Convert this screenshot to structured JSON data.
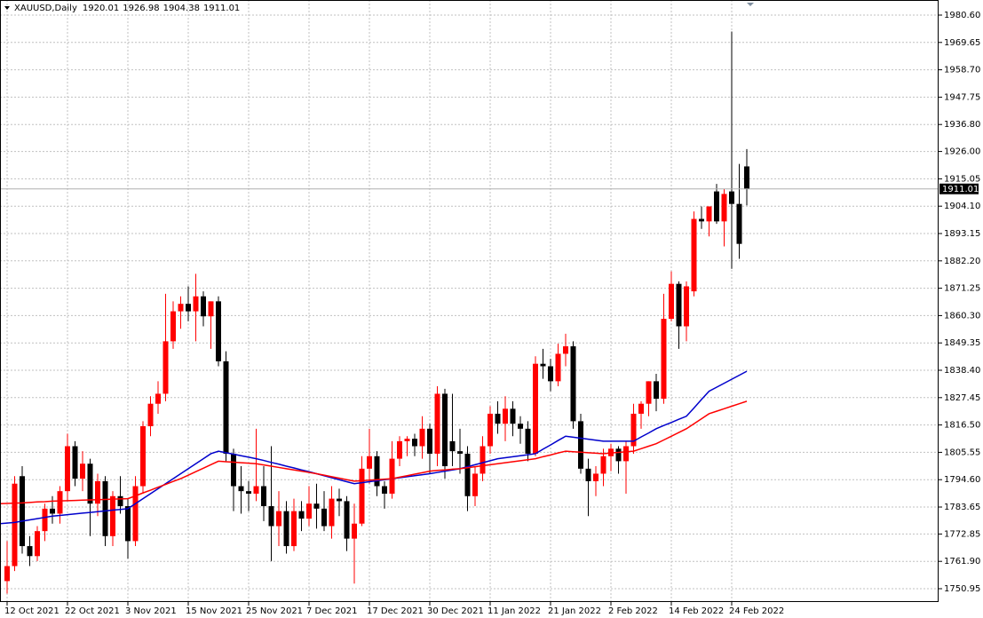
{
  "chart_data": {
    "type": "candlestick",
    "title": "XAUUSD,Daily",
    "bull_color": "#ff0000",
    "bear_color": "#000000",
    "grid": true,
    "categories": [
      "12 Oct 2021",
      null,
      null,
      null,
      null,
      null,
      null,
      null,
      "22 Oct 2021",
      null,
      null,
      null,
      null,
      null,
      null,
      null,
      "3 Nov 2021",
      null,
      null,
      null,
      null,
      null,
      null,
      null,
      "15 Nov 2021",
      null,
      null,
      null,
      null,
      null,
      null,
      null,
      "25 Nov 2021",
      null,
      null,
      null,
      null,
      null,
      null,
      null,
      "7 Dec 2021",
      null,
      null,
      null,
      null,
      null,
      null,
      null,
      "17 Dec 2021",
      null,
      null,
      null,
      null,
      null,
      null,
      null,
      "30 Dec 2021",
      null,
      null,
      null,
      null,
      null,
      null,
      null,
      "11 Jan 2022",
      null,
      null,
      null,
      null,
      null,
      null,
      null,
      "21 Jan 2022",
      null,
      null,
      null,
      null,
      null,
      null,
      null,
      "2 Feb 2022",
      null,
      null,
      null,
      null,
      null,
      null,
      null,
      "14 Feb 2022",
      null,
      null,
      null,
      null,
      null,
      null,
      null,
      "24 Feb 2022",
      null,
      null
    ],
    "open": [
      1754,
      1760,
      1796,
      1768,
      1764,
      1774,
      1783,
      1781,
      1790,
      1808,
      1795,
      1801,
      1785,
      1794,
      1772,
      1788,
      1784,
      1770,
      1792,
      1816,
      1825,
      1829,
      1850,
      1862,
      1865,
      1862,
      1868,
      1860,
      1866,
      1842,
      1805,
      1792,
      1790,
      1789,
      1792,
      1784,
      1776,
      1782,
      1768,
      1782,
      1779,
      1785,
      1783,
      1776,
      1787,
      1786,
      1771,
      1777,
      1799,
      1804,
      1792,
      1789,
      1803,
      1810,
      1811,
      1808,
      1815,
      1805,
      1829,
      1810,
      1806,
      1805,
      1788,
      1797,
      1808,
      1821,
      1817,
      1823,
      1817,
      1815,
      1805,
      1841,
      1840,
      1834,
      1845,
      1848,
      1818,
      1799,
      1794,
      1797,
      1804,
      1807,
      1802,
      1808,
      1821,
      1825,
      1834,
      1827,
      1859,
      1873,
      1856,
      1870,
      1899,
      1898,
      1910,
      1898,
      1910,
      1905,
      1920.01
    ],
    "high": [
      1770,
      1796,
      1800,
      1772,
      1776,
      1785,
      1788,
      1792,
      1813,
      1810,
      1806,
      1803,
      1797,
      1796,
      1790,
      1796,
      1787,
      1796,
      1818,
      1828,
      1834,
      1869,
      1866,
      1868,
      1872,
      1877,
      1870,
      1866,
      1868,
      1846,
      1807,
      1800,
      1794,
      1815,
      1800,
      1808,
      1790,
      1786,
      1787,
      1786,
      1792,
      1793,
      1790,
      1792,
      1791,
      1788,
      1785,
      1804,
      1815,
      1806,
      1794,
      1810,
      1812,
      1812,
      1813,
      1820,
      1817,
      1832,
      1831,
      1829,
      1815,
      1808,
      1800,
      1812,
      1824,
      1826,
      1828,
      1826,
      1820,
      1818,
      1844,
      1847,
      1843,
      1849,
      1853,
      1850,
      1821,
      1803,
      1800,
      1807,
      1809,
      1808,
      1810,
      1825,
      1826,
      1834,
      1837,
      1869,
      1878,
      1874,
      1874,
      1902,
      1904,
      1904,
      1913,
      1911,
      1974,
      1921,
      1926.98
    ],
    "low": [
      1749,
      1758,
      1765,
      1760,
      1762,
      1770,
      1777,
      1777,
      1786,
      1792,
      1790,
      1772,
      1780,
      1768,
      1768,
      1781,
      1763,
      1768,
      1789,
      1812,
      1821,
      1826,
      1847,
      1855,
      1858,
      1850,
      1856,
      1847,
      1840,
      1802,
      1782,
      1781,
      1782,
      1786,
      1778,
      1762,
      1768,
      1765,
      1766,
      1774,
      1776,
      1775,
      1774,
      1771,
      1780,
      1766,
      1753,
      1776,
      1793,
      1788,
      1783,
      1787,
      1800,
      1804,
      1804,
      1803,
      1797,
      1800,
      1795,
      1800,
      1797,
      1782,
      1784,
      1794,
      1805,
      1813,
      1810,
      1812,
      1809,
      1802,
      1804,
      1835,
      1830,
      1832,
      1840,
      1815,
      1797,
      1780,
      1788,
      1792,
      1798,
      1797,
      1789,
      1805,
      1815,
      1820,
      1822,
      1825,
      1858,
      1847,
      1850,
      1868,
      1895,
      1892,
      1897,
      1888,
      1879,
      1883,
      1904.38
    ],
    "close": [
      1760,
      1793,
      1768,
      1764,
      1774,
      1783,
      1781,
      1790,
      1808,
      1795,
      1801,
      1785,
      1794,
      1772,
      1788,
      1784,
      1770,
      1792,
      1816,
      1825,
      1829,
      1850,
      1862,
      1865,
      1862,
      1868,
      1860,
      1866,
      1842,
      1805,
      1792,
      1790,
      1789,
      1792,
      1784,
      1776,
      1782,
      1768,
      1782,
      1779,
      1785,
      1783,
      1776,
      1787,
      1786,
      1771,
      1777,
      1799,
      1804,
      1792,
      1789,
      1803,
      1810,
      1811,
      1808,
      1815,
      1805,
      1829,
      1800,
      1806,
      1805,
      1788,
      1797,
      1808,
      1821,
      1817,
      1823,
      1817,
      1815,
      1805,
      1841,
      1840,
      1834,
      1845,
      1848,
      1818,
      1799,
      1794,
      1797,
      1804,
      1807,
      1802,
      1808,
      1821,
      1825,
      1834,
      1827,
      1859,
      1873,
      1856,
      1872,
      1899,
      1898,
      1904,
      1898,
      1909,
      1905,
      1889,
      1911.01
    ],
    "series": [
      {
        "color": "#0000cc",
        "values": [
          1777,
          1777.5,
          1778,
          1778.5,
          1779,
          1779.5,
          1780,
          1780.3,
          1780.6,
          1780.9,
          1781.2,
          1781.5,
          1781.8,
          1782.1,
          1782.4,
          1782.7,
          1783,
          1785,
          1787,
          1789,
          1791,
          1793,
          1795,
          1797,
          1799,
          1801,
          1803,
          1805,
          1806,
          1805.4,
          1804.8,
          1804.2,
          1803.6,
          1803,
          1802.3,
          1801.5,
          1800.8,
          1800,
          1799.3,
          1798.5,
          1797.8,
          1797,
          1796.2,
          1795.4,
          1794.6,
          1793.8,
          1793,
          1793.4,
          1793.8,
          1794.2,
          1794.6,
          1795,
          1795.4,
          1795.8,
          1796.2,
          1796.6,
          1797,
          1797.5,
          1798,
          1798.5,
          1799,
          1799.8,
          1800.6,
          1801.4,
          1802.2,
          1803,
          1803.4,
          1803.8,
          1804.2,
          1804.6,
          1805,
          1806.8,
          1808.5,
          1810.3,
          1812,
          1811.6,
          1811.2,
          1810.8,
          1810.4,
          1810,
          1810,
          1810,
          1810,
          1810,
          1811.7,
          1813.3,
          1815,
          1816.3,
          1817.5,
          1818.8,
          1820,
          1823.3,
          1826.7,
          1830,
          1831.6,
          1833.2,
          1834.8,
          1836.4,
          1838
        ]
      },
      {
        "color": "#ff0000",
        "values": [
          1785,
          1785.2,
          1785.3,
          1785.5,
          1785.7,
          1785.8,
          1786,
          1786.1,
          1786.2,
          1786.3,
          1786.4,
          1786.5,
          1786.6,
          1786.7,
          1786.8,
          1786.9,
          1787,
          1788.1,
          1789.3,
          1790.4,
          1791.6,
          1792.7,
          1793.9,
          1795,
          1796.4,
          1797.8,
          1799.2,
          1800.6,
          1802,
          1801.8,
          1801.6,
          1801.4,
          1801.2,
          1801,
          1800.5,
          1800,
          1799.5,
          1799,
          1798.5,
          1798,
          1797.5,
          1797,
          1796.4,
          1795.8,
          1795.2,
          1794.6,
          1794,
          1794.2,
          1794.4,
          1794.6,
          1794.8,
          1795,
          1795.6,
          1796.2,
          1796.8,
          1797.4,
          1798,
          1798.3,
          1798.5,
          1798.8,
          1799,
          1799.4,
          1799.8,
          1800.2,
          1800.6,
          1801,
          1801.4,
          1801.8,
          1802.2,
          1802.6,
          1803,
          1803.8,
          1804.5,
          1805.3,
          1806,
          1805.8,
          1805.6,
          1805.4,
          1805.2,
          1805,
          1805.3,
          1805.5,
          1805.8,
          1806,
          1807,
          1808,
          1809,
          1810.5,
          1812,
          1813.5,
          1815,
          1817,
          1819,
          1821,
          1822,
          1823,
          1824,
          1825,
          1826
        ]
      }
    ],
    "ylim": [
      1745.62,
      1986.64
    ],
    "yticks": [
      {
        "value": 1980.6,
        "label": "1980.60"
      },
      {
        "value": 1969.65,
        "label": "1969.65"
      },
      {
        "value": 1958.7,
        "label": "1958.70"
      },
      {
        "value": 1947.75,
        "label": "1947.75"
      },
      {
        "value": 1936.8,
        "label": "1936.80"
      },
      {
        "value": 1926,
        "label": "1926.00"
      },
      {
        "value": 1915.05,
        "label": "1915.05"
      },
      {
        "value": 1904.1,
        "label": "1904.10"
      },
      {
        "value": 1893.15,
        "label": "1893.15"
      },
      {
        "value": 1882.2,
        "label": "1882.20"
      },
      {
        "value": 1871.25,
        "label": "1871.25"
      },
      {
        "value": 1860.3,
        "label": "1860.30"
      },
      {
        "value": 1849.35,
        "label": "1849.35"
      },
      {
        "value": 1838.4,
        "label": "1838.40"
      },
      {
        "value": 1827.45,
        "label": "1827.45"
      },
      {
        "value": 1816.5,
        "label": "1816.50"
      },
      {
        "value": 1805.55,
        "label": "1805.55"
      },
      {
        "value": 1794.6,
        "label": "1794.60"
      },
      {
        "value": 1783.65,
        "label": "1783.65"
      },
      {
        "value": 1772.85,
        "label": "1772.85"
      },
      {
        "value": 1761.9,
        "label": "1761.90"
      },
      {
        "value": 1750.95,
        "label": "1750.95"
      }
    ]
  }
}
